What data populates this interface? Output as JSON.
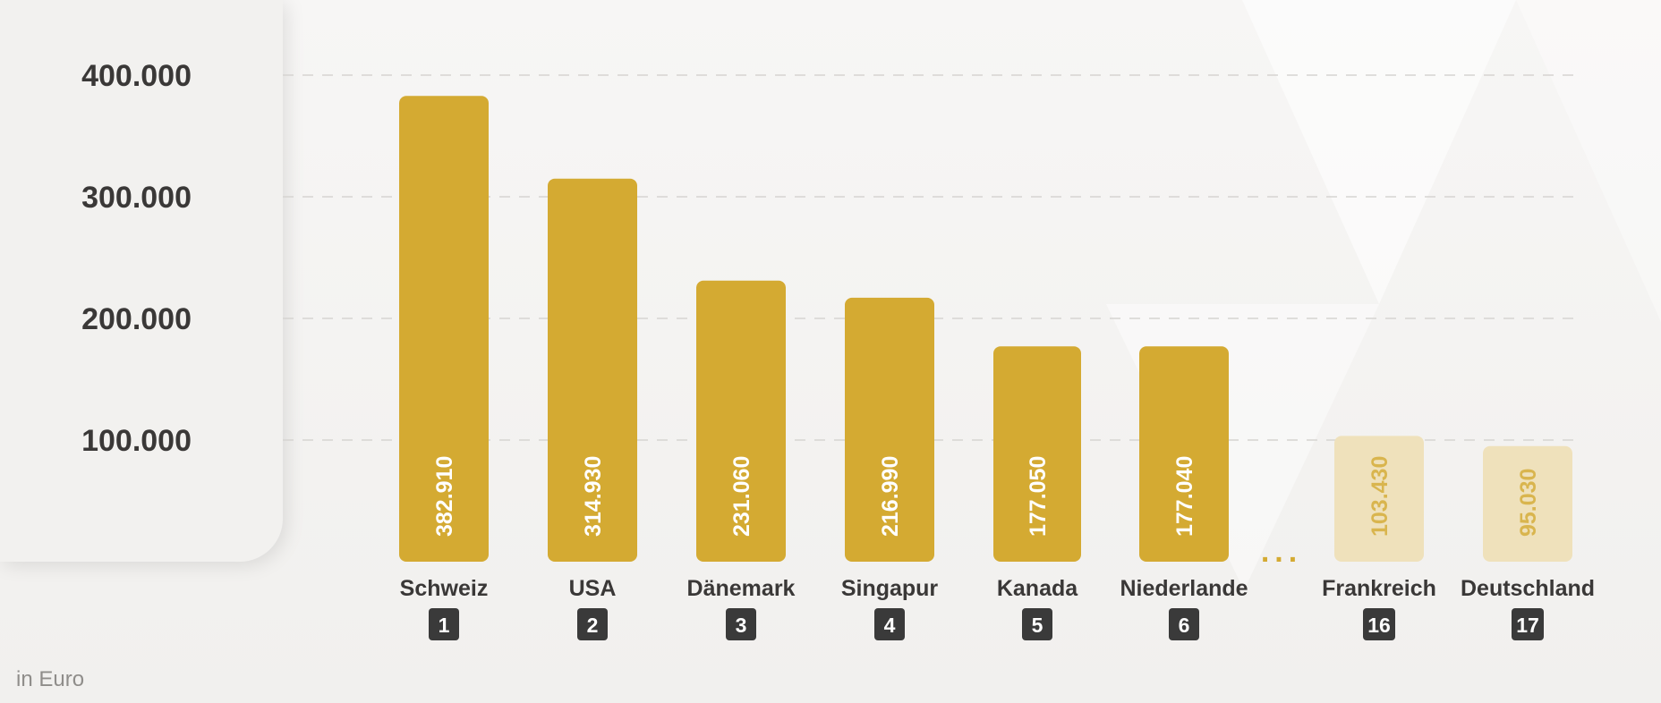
{
  "chart_data": {
    "type": "bar",
    "unit": "in Euro",
    "ylim": [
      0,
      460000
    ],
    "y_ticks": [
      {
        "value": 100000,
        "label": "100.000"
      },
      {
        "value": 200000,
        "label": "200.000"
      },
      {
        "value": 300000,
        "label": "300.000"
      },
      {
        "value": 400000,
        "label": "400.000"
      }
    ],
    "grid": true,
    "gap_marker": "...",
    "bars": [
      {
        "category": "Schweiz",
        "rank": "1",
        "value": 382910,
        "label": "382.910",
        "highlight": true
      },
      {
        "category": "USA",
        "rank": "2",
        "value": 314930,
        "label": "314.930",
        "highlight": true
      },
      {
        "category": "Dänemark",
        "rank": "3",
        "value": 231060,
        "label": "231.060",
        "highlight": true
      },
      {
        "category": "Singapur",
        "rank": "4",
        "value": 216990,
        "label": "216.990",
        "highlight": true
      },
      {
        "category": "Kanada",
        "rank": "5",
        "value": 177050,
        "label": "177.050",
        "highlight": true
      },
      {
        "category": "Niederlande",
        "rank": "6",
        "value": 177040,
        "label": "177.040",
        "highlight": true
      },
      {
        "category": "Frankreich",
        "rank": "16",
        "value": 103430,
        "label": "103.430",
        "highlight": false
      },
      {
        "category": "Deutschland",
        "rank": "17",
        "value": 95030,
        "label": "95.030",
        "highlight": false
      }
    ],
    "colors": {
      "bar": "#d4aa32",
      "bar_muted": "#efe1bb",
      "value_text": "#ffffff",
      "value_text_muted": "#d9b54e",
      "rank_badge": "#3a3a3a",
      "axis_text": "#3a3837",
      "grid": "#d6d4d1"
    }
  }
}
